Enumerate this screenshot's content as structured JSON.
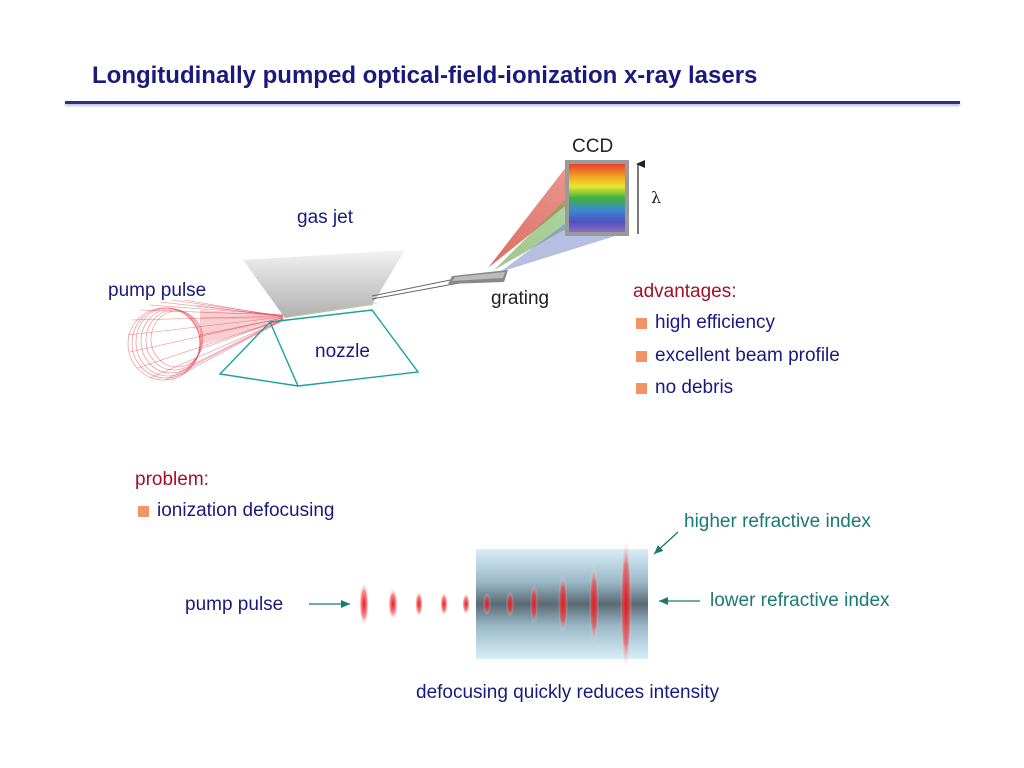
{
  "title": "Longitudinally pumped optical-field-ionization x-ray lasers",
  "setup": {
    "ccd_label": "CCD",
    "lambda_label": "λ",
    "gas_jet_label": "gas jet",
    "pump_pulse_label": "pump pulse",
    "nozzle_label": "nozzle",
    "grating_label": "grating"
  },
  "advantages": {
    "heading": "advantages:",
    "items": [
      "high efficiency",
      "excellent beam profile",
      "no debris"
    ]
  },
  "problem": {
    "heading": "problem:",
    "items": [
      "ionization defocusing"
    ]
  },
  "defocus": {
    "pump_pulse_label": "pump pulse",
    "higher_index_label": "higher refractive index",
    "lower_index_label": "lower refractive index",
    "caption": "defocusing quickly reduces intensity"
  },
  "colors": {
    "title": "#1a1a7e",
    "heading": "#a0102a",
    "bullet": "#f29466",
    "annotation": "#1a7a72",
    "pulse": "#e8141c"
  },
  "icons": [
    "bullet-square",
    "arrow-right",
    "arrow-left",
    "arrow-diagonal",
    "wavelength-arrow"
  ]
}
